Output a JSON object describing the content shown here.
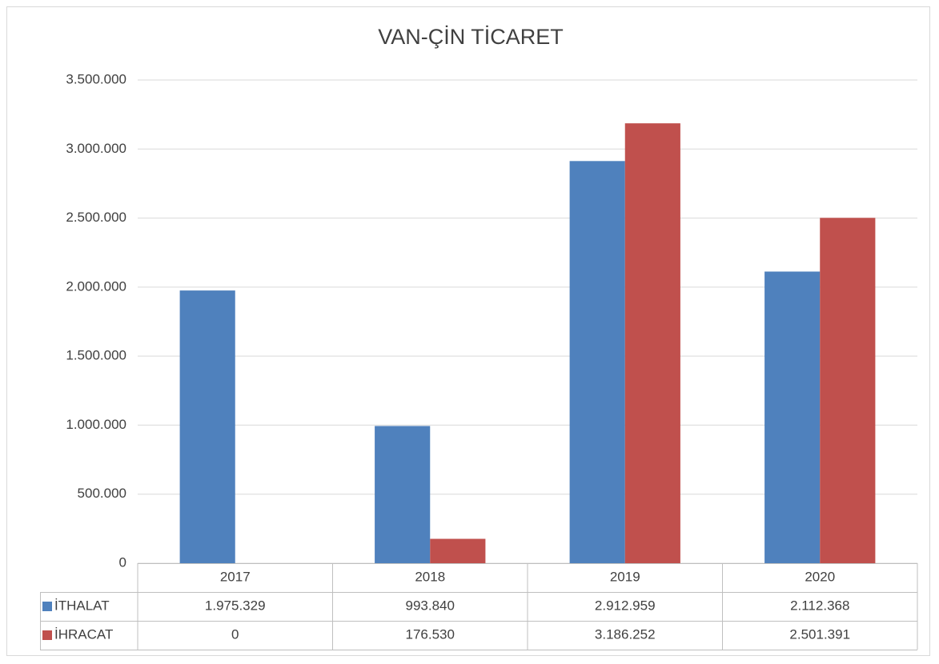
{
  "chart_data": {
    "type": "bar",
    "title": "VAN-ÇİN TİCARET",
    "categories": [
      "2017",
      "2018",
      "2019",
      "2020"
    ],
    "series": [
      {
        "name": "İTHALAT",
        "color": "#4f81bd",
        "values": [
          1975329,
          993840,
          2912959,
          2112368
        ],
        "value_labels": [
          "1.975.329",
          "993.840",
          "2.912.959",
          "2.112.368"
        ]
      },
      {
        "name": "İHRACAT",
        "color": "#c0504d",
        "values": [
          0,
          176530,
          3186252,
          2501391
        ],
        "value_labels": [
          "0",
          "176.530",
          "3.186.252",
          "2.501.391"
        ]
      }
    ],
    "ylim": [
      0,
      3500000
    ],
    "yticks": [
      0,
      {
        "value": 500000,
        "label": "500.000"
      },
      {
        "value": 1000000,
        "label": "1.000.000"
      },
      {
        "value": 1500000,
        "label": "1.500.000"
      },
      {
        "value": 2000000,
        "label": "2.000.000"
      },
      {
        "value": 2500000,
        "label": "2.500.000"
      },
      {
        "value": 3000000,
        "label": "3.000.000"
      },
      {
        "value": 3500000,
        "label": "3.500.000"
      }
    ],
    "grid": true,
    "legend": "data-table"
  }
}
